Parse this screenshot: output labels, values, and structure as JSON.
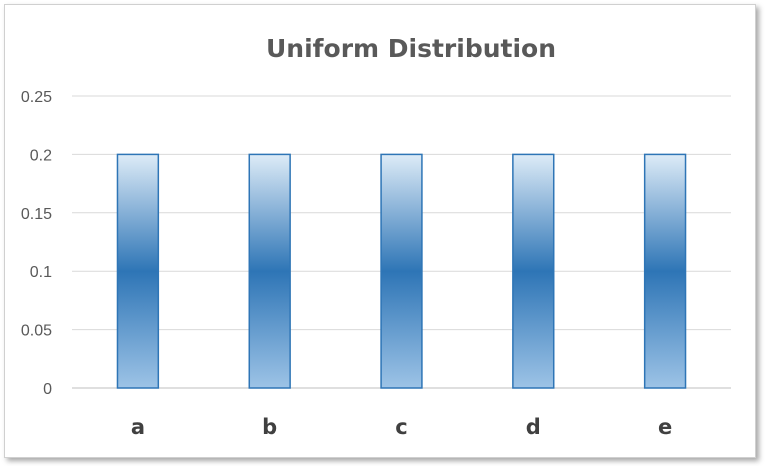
{
  "chart_data": {
    "type": "bar",
    "title": "Uniform Distribution",
    "categories": [
      "a",
      "b",
      "c",
      "d",
      "e"
    ],
    "values": [
      0.2,
      0.2,
      0.2,
      0.2,
      0.2
    ],
    "ylim": [
      0,
      0.25
    ],
    "yticks": [
      "0",
      "0.05",
      "0.1",
      "0.15",
      "0.2",
      "0.25"
    ],
    "ytick_values": [
      0,
      0.05,
      0.1,
      0.15,
      0.2,
      0.25
    ],
    "xlabel": "",
    "ylabel": "",
    "grid": true,
    "legend": "none",
    "colors": {
      "bar_light": "#ddebf7",
      "bar_dark": "#2e75b6",
      "bar_edge": "#2e75b6",
      "grid": "#d9d9d9",
      "axis": "#bfbfbf"
    }
  }
}
